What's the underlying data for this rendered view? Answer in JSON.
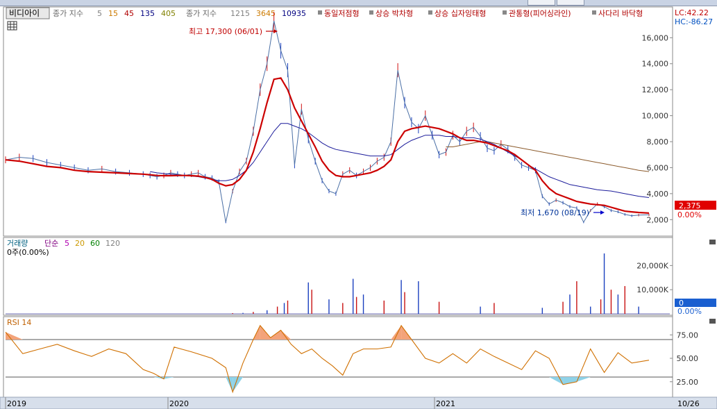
{
  "legend": {
    "stock_name": "비디아이",
    "ma_label": "종가 지수",
    "ma_periods": [
      "5",
      "15",
      "45",
      "135",
      "405"
    ],
    "ma_colors": [
      "#808080",
      "#cc7a00",
      "#b00000",
      "#000080",
      "#808000"
    ],
    "ma_long_label": "종가 지수",
    "ma_long_periods": [
      "1215",
      "3645",
      "10935"
    ],
    "ma_long_colors": [
      "#808080",
      "#cc7a00",
      "#000080"
    ],
    "patterns": [
      "동일저점형",
      "상승 박차형",
      "상승 십자잉태형",
      "관통형(피어싱라인)",
      "사다리 바닥형"
    ]
  },
  "axis_info": {
    "lc": "LC:42.22",
    "hc": "HC:-86.27"
  },
  "annotations": {
    "high": "최고 17,300 (06/01)",
    "low": "최저 1,670 (08/19)",
    "current_price": "2,375",
    "current_change": "0.00%",
    "volume_current": "0",
    "volume_change": "0.00%"
  },
  "volume_panel": {
    "title": "거래량",
    "ma_label": "단순",
    "ma_periods": [
      "5",
      "20",
      "60",
      "120"
    ],
    "ma_colors": [
      "#b000b0",
      "#cc9900",
      "#008000",
      "#808080"
    ],
    "info": "0주(0.00%)"
  },
  "rsi_panel": {
    "title": "RSI 14"
  },
  "x_axis": {
    "labels": [
      "2019",
      "2020",
      "2021"
    ],
    "right_label": "10/26"
  },
  "chart_data": [
    {
      "type": "line",
      "name": "price",
      "ylim": [
        0,
        17300
      ],
      "yticks": [
        "16,000",
        "14,000",
        "12,000",
        "10,000",
        "8,000",
        "6,000",
        "4,000",
        "2,000"
      ],
      "x": [
        0,
        20,
        40,
        60,
        80,
        100,
        120,
        140,
        160,
        180,
        200,
        210,
        220,
        230,
        240,
        250,
        260,
        270,
        280,
        290,
        300,
        310,
        320,
        330,
        340,
        350,
        360,
        370,
        380,
        390,
        400,
        410,
        420,
        430,
        440,
        450,
        460,
        470,
        480,
        490,
        500,
        510,
        520,
        530,
        540,
        550,
        560,
        570,
        580,
        590,
        600,
        610,
        620,
        630,
        640,
        650,
        660,
        670,
        680,
        690,
        700,
        710,
        720,
        730,
        740,
        750,
        760,
        770,
        780,
        790,
        800,
        810,
        820,
        830,
        840,
        850,
        860,
        870,
        880,
        890,
        900,
        910,
        920,
        935
      ],
      "close": [
        6600,
        6800,
        6700,
        6400,
        6200,
        6000,
        5800,
        5900,
        5700,
        5600,
        5500,
        5400,
        5300,
        5400,
        5600,
        5500,
        5400,
        5500,
        5600,
        5300,
        5200,
        4900,
        1800,
        4200,
        5700,
        6500,
        8800,
        12000,
        14000,
        17300,
        15000,
        13500,
        6200,
        10500,
        8200,
        6500,
        5000,
        4200,
        4000,
        5500,
        5800,
        5400,
        5700,
        6000,
        6500,
        6800,
        8000,
        13500,
        11000,
        9500,
        9000,
        10000,
        8500,
        7000,
        7200,
        8500,
        8000,
        8800,
        9100,
        8400,
        7500,
        7300,
        7800,
        7400,
        6800,
        6200,
        6000,
        5800,
        3800,
        3200,
        3500,
        3300,
        3000,
        2900,
        1800,
        2700,
        3200,
        3000,
        2700,
        2600,
        2400,
        2300,
        2350,
        2375
      ],
      "ma45": [
        6600,
        6500,
        6300,
        6100,
        6000,
        5800,
        5700,
        5650,
        5600,
        5550,
        5500,
        5450,
        5400,
        5380,
        5380,
        5400,
        5400,
        5380,
        5350,
        5250,
        5100,
        4800,
        4600,
        4700,
        5100,
        5800,
        7200,
        9000,
        11000,
        12800,
        12900,
        12000,
        10600,
        9600,
        8600,
        7600,
        6500,
        5800,
        5400,
        5300,
        5300,
        5400,
        5500,
        5600,
        5800,
        6100,
        6600,
        8000,
        8800,
        9000,
        9100,
        9200,
        9100,
        9000,
        8800,
        8600,
        8300,
        8100,
        8100,
        8000,
        7900,
        7700,
        7500,
        7300,
        7000,
        6600,
        6200,
        5800,
        5000,
        4400,
        4000,
        3800,
        3600,
        3400,
        3300,
        3200,
        3150,
        3100,
        2950,
        2800,
        2650,
        2600,
        2550,
        2500
      ],
      "ma135": [
        null,
        null,
        null,
        null,
        null,
        null,
        null,
        null,
        null,
        null,
        null,
        5700,
        5600,
        5550,
        5500,
        5450,
        5400,
        5350,
        5300,
        5200,
        5100,
        5000,
        5000,
        5100,
        5400,
        5800,
        6400,
        7200,
        8000,
        8800,
        9400,
        9400,
        9200,
        9000,
        8700,
        8300,
        7900,
        7600,
        7400,
        7300,
        7200,
        7100,
        7000,
        6900,
        6900,
        6900,
        7000,
        7400,
        7800,
        8100,
        8300,
        8500,
        8500,
        8500,
        8400,
        8400,
        8300,
        8300,
        8300,
        8200,
        8000,
        7800,
        7500,
        7200,
        6900,
        6600,
        6200,
        5900,
        5600,
        5300,
        5100,
        4900,
        4700,
        4600,
        4500,
        4400,
        4300,
        4250,
        4200,
        4100,
        4000,
        3900,
        3800,
        3700
      ],
      "ma405": [
        null,
        null,
        null,
        null,
        null,
        null,
        null,
        null,
        null,
        null,
        null,
        null,
        null,
        null,
        null,
        null,
        null,
        null,
        null,
        null,
        null,
        null,
        null,
        null,
        null,
        null,
        null,
        null,
        null,
        null,
        null,
        null,
        null,
        null,
        null,
        null,
        null,
        null,
        null,
        null,
        null,
        null,
        null,
        null,
        null,
        null,
        null,
        null,
        null,
        null,
        null,
        null,
        null,
        null,
        7600,
        7600,
        7700,
        7800,
        7900,
        8000,
        8000,
        7900,
        7800,
        7700,
        7600,
        7500,
        7400,
        7300,
        7200,
        7100,
        7000,
        6900,
        6800,
        6700,
        6600,
        6500,
        6400,
        6300,
        6200,
        6100,
        6000,
        5900,
        5800,
        5700
      ]
    },
    {
      "type": "bar",
      "name": "volume",
      "ylim": [
        0,
        27000
      ],
      "yticks": [
        "20,000K",
        "10,000K"
      ],
      "x": [
        330,
        345,
        360,
        380,
        395,
        405,
        410,
        440,
        445,
        470,
        490,
        505,
        510,
        520,
        550,
        575,
        580,
        600,
        630,
        690,
        710,
        780,
        810,
        820,
        830,
        850,
        865,
        870,
        880,
        890,
        900,
        920
      ],
      "values": [
        300,
        400,
        800,
        1500,
        3000,
        4500,
        5500,
        13000,
        10000,
        6000,
        4500,
        14500,
        7000,
        8000,
        5500,
        14000,
        9000,
        13500,
        5000,
        3000,
        4500,
        2500,
        5000,
        8000,
        13500,
        3000,
        6000,
        25000,
        10000,
        8000,
        11500,
        3000
      ]
    },
    {
      "type": "line",
      "name": "rsi",
      "ylim": [
        10,
        90
      ],
      "yticks": [
        "75.00",
        "50.00",
        "25.00"
      ],
      "x": [
        0,
        25,
        50,
        75,
        100,
        125,
        150,
        175,
        200,
        215,
        230,
        245,
        270,
        300,
        320,
        330,
        345,
        360,
        370,
        385,
        400,
        415,
        430,
        445,
        460,
        475,
        490,
        505,
        520,
        540,
        560,
        575,
        590,
        610,
        630,
        650,
        670,
        690,
        710,
        730,
        750,
        770,
        790,
        810,
        830,
        850,
        870,
        890,
        910,
        935
      ],
      "values": [
        78,
        55,
        60,
        65,
        58,
        52,
        60,
        55,
        38,
        34,
        28,
        62,
        57,
        50,
        40,
        14,
        45,
        70,
        85,
        72,
        80,
        65,
        55,
        60,
        50,
        42,
        32,
        55,
        60,
        60,
        62,
        85,
        70,
        50,
        45,
        55,
        45,
        60,
        52,
        45,
        38,
        58,
        50,
        22,
        25,
        60,
        35,
        56,
        45,
        48
      ],
      "levels": [
        70,
        30
      ]
    }
  ]
}
